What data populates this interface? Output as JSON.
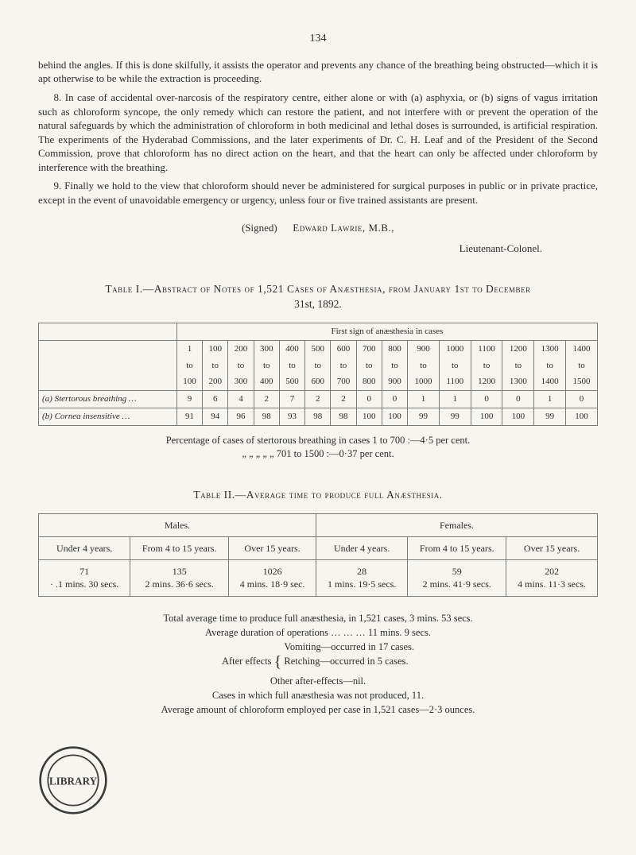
{
  "page_number": "134",
  "paragraphs": {
    "p1": "behind the angles.  If this is done skilfully, it assists the operator and prevents any chance of the breathing being obstructed—which it is apt otherwise to be while the extraction is proceeding.",
    "p2": "8. In case of accidental over-narcosis of the respiratory centre, either alone or with (a) asphyxia, or (b) signs of vagus irritation such as chloroform syncope, the only remedy which can restore the patient, and not interfere with or prevent the operation of the natural safeguards by which the administration of chloroform in both medicinal and lethal doses is surrounded, is artificial respiration.  The experiments of the Hyderabad Commissions, and the later experiments of Dr. C. H. Leaf and of the President of the Second Commission, prove that chloroform has no direct action on the heart, and that the heart can only be affected under chloroform by interference with the breathing.",
    "p3": "9. Finally we hold to the view that chloroform should never be administered for surgical purposes in public or in private practice, except in the event of unavoidable emergency or urgency, unless four or five trained assistants are present."
  },
  "signature": {
    "signed": "(Signed)",
    "name": "Edward Lawrie, M.B.,",
    "rank": "Lieutenant-Colonel."
  },
  "table1": {
    "title_prefix": "Table I.—Abstract of Notes of 1,521 Cases of Anæsthesia, from January 1st to December",
    "title_line2": "31st, 1892.",
    "spanner": "First sign of anæsthesia in cases",
    "range_cols": [
      {
        "top": "1",
        "mid": "to",
        "bot": "100"
      },
      {
        "top": "100",
        "mid": "to",
        "bot": "200"
      },
      {
        "top": "200",
        "mid": "to",
        "bot": "300"
      },
      {
        "top": "300",
        "mid": "to",
        "bot": "400"
      },
      {
        "top": "400",
        "mid": "to",
        "bot": "500"
      },
      {
        "top": "500",
        "mid": "to",
        "bot": "600"
      },
      {
        "top": "600",
        "mid": "to",
        "bot": "700"
      },
      {
        "top": "700",
        "mid": "to",
        "bot": "800"
      },
      {
        "top": "800",
        "mid": "to",
        "bot": "900"
      },
      {
        "top": "900",
        "mid": "to",
        "bot": "1000"
      },
      {
        "top": "1000",
        "mid": "to",
        "bot": "1100"
      },
      {
        "top": "1100",
        "mid": "to",
        "bot": "1200"
      },
      {
        "top": "1200",
        "mid": "to",
        "bot": "1300"
      },
      {
        "top": "1300",
        "mid": "to",
        "bot": "1400"
      },
      {
        "top": "1400",
        "mid": "to",
        "bot": "1500"
      }
    ],
    "rows": [
      {
        "label": "(a) Stertorous breathing …",
        "vals": [
          "9",
          "6",
          "4",
          "2",
          "7",
          "2",
          "2",
          "0",
          "0",
          "1",
          "1",
          "0",
          "0",
          "1",
          "0"
        ]
      },
      {
        "label": "(b) Cornea insensitive   …",
        "vals": [
          "91",
          "94",
          "96",
          "98",
          "93",
          "98",
          "98",
          "100",
          "100",
          "99",
          "99",
          "100",
          "100",
          "99",
          "100"
        ]
      }
    ]
  },
  "percent_note": {
    "l1": "Percentage of cases of stertorous breathing in cases 1 to 700 :—4·5 per cent.",
    "l2": "„        „        „        „        „   701 to 1500 :—0·37 per cent."
  },
  "table2": {
    "title": "Table II.—Average time to produce full Anæsthesia.",
    "headers": {
      "males": "Males.",
      "females": "Females."
    },
    "sub": {
      "u4": "Under 4 years.",
      "f4": "From 4 to 15 years.",
      "o15": "Over 15 years."
    },
    "rows": {
      "m": {
        "u4_top": "71",
        "u4_bot": "· .1 mins. 30 secs.",
        "f4_top": "135",
        "f4_bot": "2 mins. 36·6 secs.",
        "o15_top": "1026",
        "o15_bot": "4 mins. 18·9 sec."
      },
      "f": {
        "u4_top": "28",
        "u4_bot": "1 mins. 19·5 secs.",
        "f4_top": "59",
        "f4_bot": "2 mins. 41·9 secs.",
        "o15_top": "202",
        "o15_bot": "4 mins. 11·3 secs."
      }
    }
  },
  "footer": {
    "l1": "Total average time to produce full anæsthesia, in 1,521 cases, 3 mins. 53 secs.",
    "l2": "Average duration of operations    …    …    …    11 mins. 9 secs.",
    "l3a": "After effects",
    "l3b": "Vomiting—occurred in 17 cases.",
    "l3c": "Retching—occurred in 5 cases.",
    "l4": "Other after-effects—nil.",
    "l5": "Cases in which full anæsthesia was not produced, 11.",
    "l6": "Average amount of chloroform employed per case in 1,521 cases—2·3 ounces."
  },
  "stamp": {
    "text": "LIBRARY"
  }
}
